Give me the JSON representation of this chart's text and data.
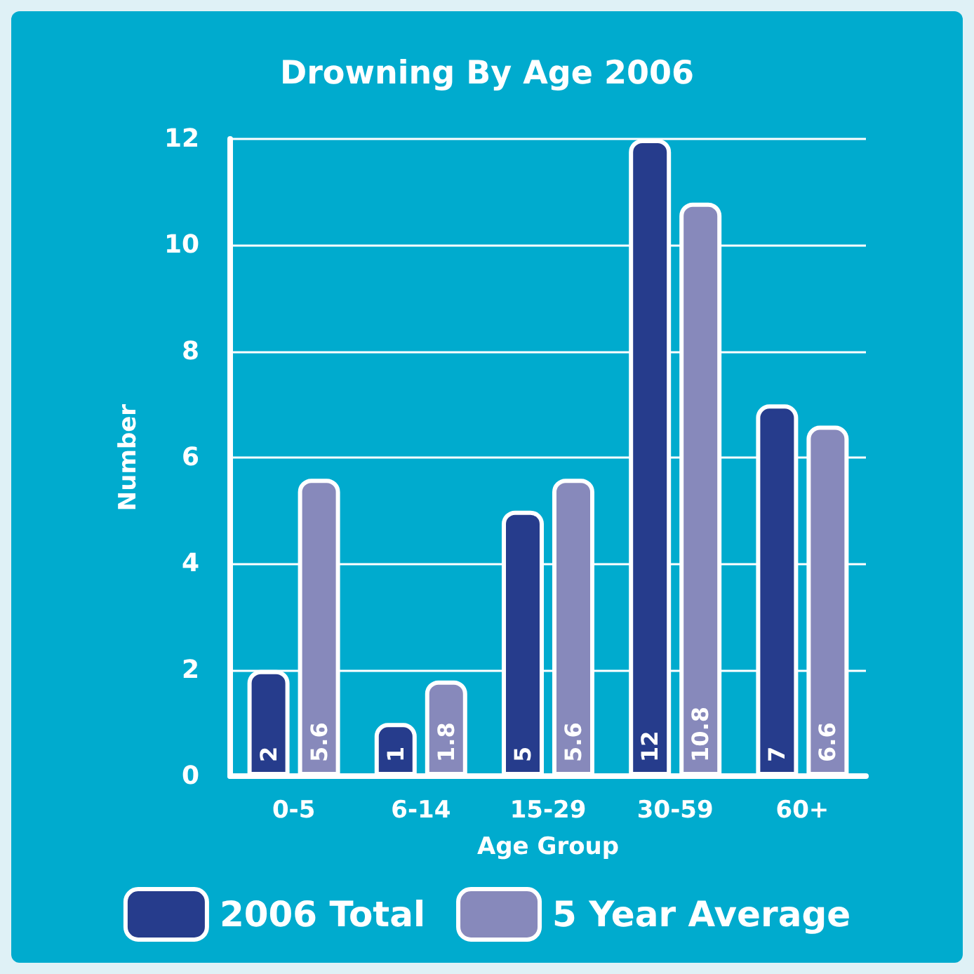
{
  "chart_data": {
    "type": "bar",
    "title": "Drowning By Age 2006",
    "xlabel": "Age Group",
    "ylabel": "Number",
    "categories": [
      "0-5",
      "6-14",
      "15-29",
      "30-59",
      "60+"
    ],
    "series": [
      {
        "name": "2006 Total",
        "color": "#263c8c",
        "values": [
          2,
          1,
          5,
          12,
          7
        ]
      },
      {
        "name": "5 Year Average",
        "color": "#8789bb",
        "values": [
          5.6,
          1.8,
          5.6,
          10.8,
          6.6
        ]
      }
    ],
    "ylim": [
      0,
      12
    ],
    "yticks": [
      0,
      2,
      4,
      6,
      8,
      10,
      12
    ],
    "grid": "y",
    "legend": "bottom",
    "data_labels": true
  }
}
